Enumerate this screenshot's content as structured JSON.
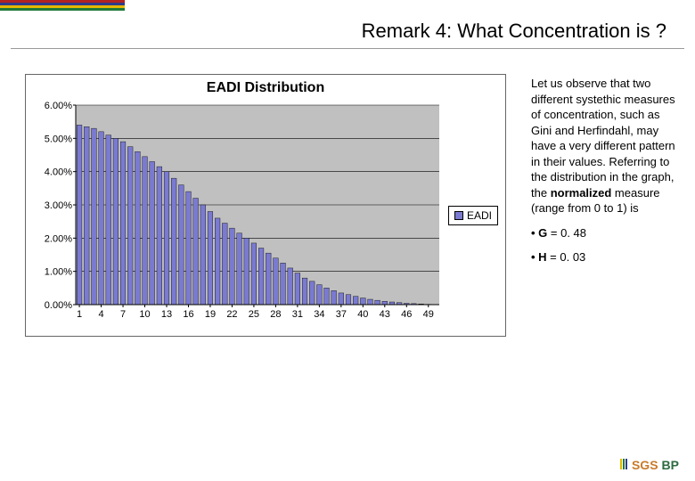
{
  "header": {
    "stripes": [
      "#b22222",
      "#2e3a8c",
      "#e6b800",
      "#1f7a3a"
    ],
    "title": "Remark 4: What Concentration is ?"
  },
  "chart": {
    "type": "bar",
    "title": "EADI Distribution",
    "legend_label": "EADI",
    "bar_color": "#7a7ad1",
    "bar_border": "#000000",
    "plot_background": "#c0c0c0",
    "panel_background": "#ffffff",
    "grid_color": "#000000",
    "axis_color": "#000000",
    "xlim": [
      1,
      50
    ],
    "ylim": [
      0,
      0.06
    ],
    "yticks": [
      0,
      0.01,
      0.02,
      0.03,
      0.04,
      0.05,
      0.06
    ],
    "ytick_labels": [
      "0.00%",
      "1.00%",
      "2.00%",
      "3.00%",
      "4.00%",
      "5.00%",
      "6.00%"
    ],
    "xticks": [
      1,
      4,
      7,
      10,
      13,
      16,
      19,
      22,
      25,
      28,
      31,
      34,
      37,
      40,
      43,
      46,
      49
    ],
    "values_pct": [
      5.4,
      5.35,
      5.3,
      5.2,
      5.1,
      5.0,
      4.9,
      4.75,
      4.6,
      4.45,
      4.3,
      4.15,
      4.0,
      3.8,
      3.6,
      3.4,
      3.2,
      3.0,
      2.8,
      2.6,
      2.45,
      2.3,
      2.15,
      2.0,
      1.85,
      1.7,
      1.55,
      1.4,
      1.25,
      1.1,
      0.95,
      0.8,
      0.7,
      0.6,
      0.5,
      0.42,
      0.35,
      0.3,
      0.25,
      0.2,
      0.16,
      0.13,
      0.1,
      0.08,
      0.06,
      0.04,
      0.03,
      0.02,
      0.01,
      0.005
    ],
    "tick_fontsize": 11,
    "title_fontsize": 16
  },
  "side": {
    "paragraph_pre": "Let us observe that two different systethic measures of concentration, such as Gini and Herfindahl, may have a very different pattern in their values. Referring to the distribution in the graph, the ",
    "paragraph_bold": "normalized",
    "paragraph_post": " measure (range from 0 to 1) is",
    "g_label": "• G",
    "g_value": " = 0. 48",
    "h_label": "• H",
    "h_value": " = 0. 03"
  },
  "footer": {
    "sgs": "SGS",
    "bp": "BP",
    "bar_colors": [
      "#e6b800",
      "#1f7a3a",
      "#2e3a8c"
    ]
  }
}
